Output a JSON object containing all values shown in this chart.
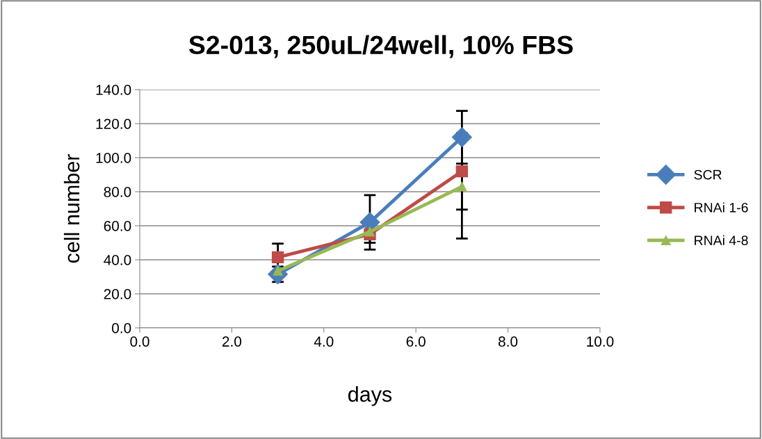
{
  "chart_data": {
    "type": "line",
    "title": "S2-013, 250uL/24well, 10% FBS",
    "xlabel": "days",
    "ylabel": "cell number",
    "x": [
      3,
      5,
      7
    ],
    "series": [
      {
        "name": "SCR",
        "color": "#4a7ebb",
        "marker": "diamond",
        "values": [
          31.5,
          62,
          112
        ],
        "errors": [
          4.5,
          16,
          15.5
        ]
      },
      {
        "name": "RNAi 1-6",
        "color": "#be4b48",
        "marker": "square",
        "values": [
          41.5,
          55,
          92
        ],
        "errors": [
          8,
          5,
          22.5
        ]
      },
      {
        "name": "RNAi 4-8",
        "color": "#98b954",
        "marker": "triangle",
        "values": [
          33.5,
          56.5,
          83
        ],
        "errors": [
          null,
          null,
          30.5
        ]
      }
    ],
    "xlim": [
      0,
      10
    ],
    "xticks": [
      {
        "value": 0,
        "label": "0.0"
      },
      {
        "value": 2,
        "label": "2.0"
      },
      {
        "value": 4,
        "label": "4.0"
      },
      {
        "value": 6,
        "label": "6.0"
      },
      {
        "value": 8,
        "label": "8.0"
      },
      {
        "value": 10,
        "label": "10.0"
      }
    ],
    "ylim": [
      0,
      140
    ],
    "yticks": [
      {
        "value": 0,
        "label": "0.0"
      },
      {
        "value": 20,
        "label": "20.0"
      },
      {
        "value": 40,
        "label": "40.0"
      },
      {
        "value": 60,
        "label": "60.0"
      },
      {
        "value": 80,
        "label": "80.0"
      },
      {
        "value": 100,
        "label": "100.0"
      },
      {
        "value": 120,
        "label": "120.0"
      },
      {
        "value": 140,
        "label": "140.0"
      }
    ],
    "grid": "y",
    "legend": "right",
    "line_style": "solid"
  }
}
